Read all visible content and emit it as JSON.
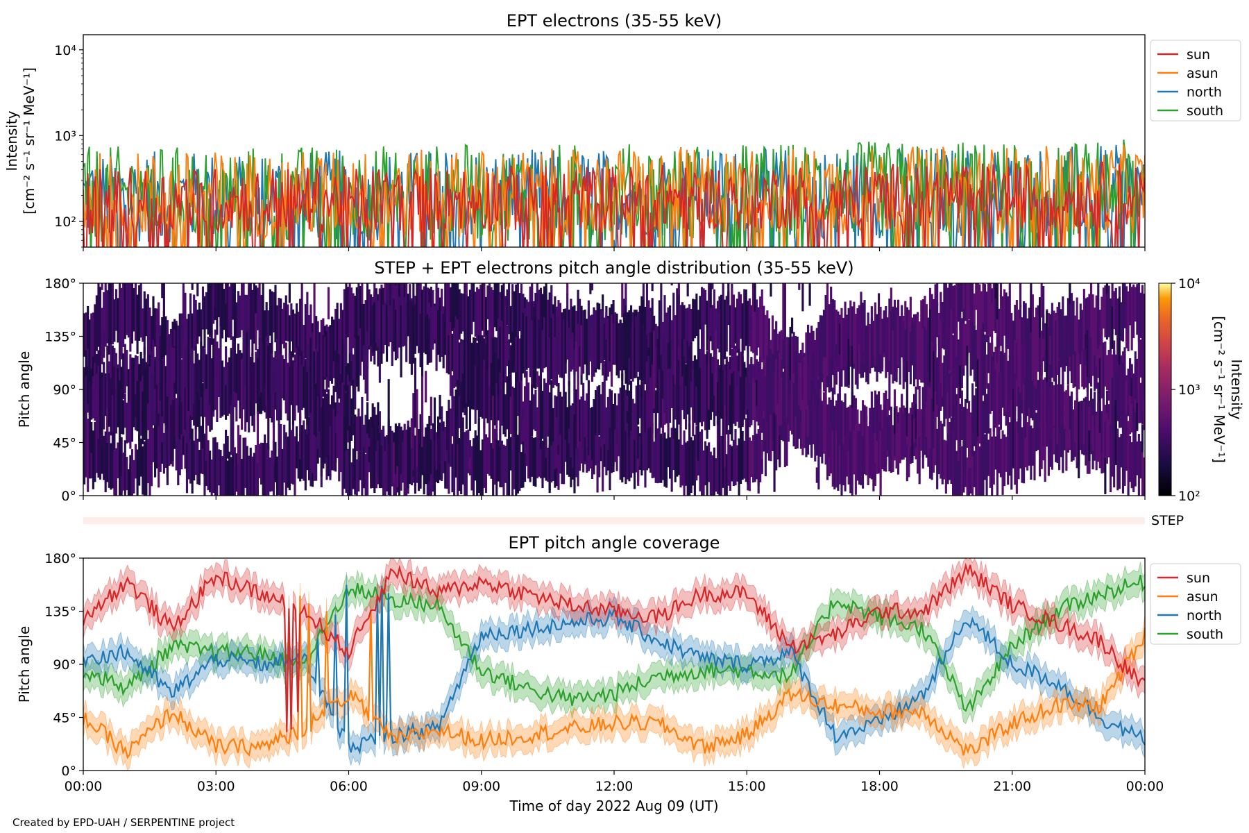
{
  "chart_data": [
    {
      "type": "line",
      "title": "EPT electrons (35-55 keV)",
      "ylabel_line1": "Intensity",
      "ylabel_line2": "[cm⁻² s⁻¹ sr⁻¹ MeV⁻¹]",
      "yscale": "log",
      "ylim": [
        50,
        15000
      ],
      "yticks": [
        {
          "value": 100,
          "label": "10²"
        },
        {
          "value": 1000,
          "label": "10³"
        },
        {
          "value": 10000,
          "label": "10⁴"
        }
      ],
      "x_hours": [
        0,
        24
      ],
      "legend_position": "outside-right",
      "series": [
        {
          "name": "sun",
          "color": "#d62728",
          "typical_min": 70,
          "typical_max": 420
        },
        {
          "name": "asun",
          "color": "#ff7f0e",
          "typical_min": 60,
          "typical_max": 650
        },
        {
          "name": "north",
          "color": "#1f77b4",
          "typical_min": 55,
          "typical_max": 650
        },
        {
          "name": "south",
          "color": "#2ca02c",
          "typical_min": 55,
          "typical_max": 750
        }
      ]
    },
    {
      "type": "heatmap",
      "title": "STEP + EPT electrons pitch angle distribution (35-55 keV)",
      "ylabel": "Pitch angle",
      "ylim": [
        0,
        180
      ],
      "yticks": [
        "0°",
        "45°",
        "90°",
        "135°",
        "180°"
      ],
      "colorbar": {
        "scale": "log",
        "range": [
          100,
          10000
        ],
        "ticks": [
          {
            "value": 100,
            "label": "10²"
          },
          {
            "value": 1000,
            "label": "10³"
          },
          {
            "value": 10000,
            "label": "10⁴"
          }
        ],
        "label_line1": "Intensity",
        "label_line2": "[cm⁻² s⁻¹ sr⁻¹ MeV⁻¹]",
        "colormap": "inferno"
      },
      "step_label": "STEP"
    },
    {
      "type": "line",
      "title": "EPT pitch angle coverage",
      "ylabel": "Pitch angle",
      "ylim": [
        0,
        180
      ],
      "yticks": [
        "0°",
        "45°",
        "90°",
        "135°",
        "180°"
      ],
      "xlabel": "Time of day 2022 Aug 09 (UT)",
      "xticks": [
        "00:00",
        "03:00",
        "06:00",
        "09:00",
        "12:00",
        "15:00",
        "18:00",
        "21:00",
        "00:00"
      ],
      "x_hours": [
        0,
        24
      ],
      "legend_position": "outside-right",
      "series": [
        {
          "name": "sun",
          "color": "#d62728",
          "x": [
            0,
            1,
            2,
            3,
            4,
            5,
            6,
            7,
            8,
            9,
            10,
            11,
            12,
            13,
            14,
            15,
            16,
            17,
            18,
            19,
            20,
            21,
            22,
            23,
            24
          ],
          "y": [
            130,
            160,
            120,
            165,
            150,
            135,
            100,
            170,
            150,
            160,
            150,
            140,
            135,
            130,
            150,
            150,
            105,
            115,
            135,
            135,
            170,
            140,
            125,
            110,
            70
          ]
        },
        {
          "name": "asun",
          "color": "#ff7f0e",
          "x": [
            0,
            1,
            2,
            3,
            4,
            5,
            6,
            7,
            8,
            9,
            10,
            11,
            12,
            13,
            14,
            15,
            16,
            17,
            18,
            19,
            20,
            21,
            22,
            23,
            24
          ],
          "y": [
            45,
            15,
            50,
            20,
            20,
            35,
            65,
            25,
            35,
            25,
            30,
            35,
            40,
            40,
            20,
            30,
            65,
            55,
            50,
            50,
            15,
            40,
            55,
            55,
            115
          ]
        },
        {
          "name": "north",
          "color": "#1f77b4",
          "x": [
            0,
            1,
            2,
            3,
            4,
            5,
            6,
            7,
            8,
            9,
            10,
            11,
            12,
            13,
            14,
            15,
            16,
            17,
            18,
            19,
            20,
            21,
            22,
            23,
            24
          ],
          "y": [
            95,
            100,
            65,
            95,
            90,
            95,
            20,
            30,
            35,
            115,
            120,
            125,
            130,
            110,
            95,
            90,
            100,
            30,
            40,
            65,
            130,
            90,
            75,
            45,
            25
          ]
        },
        {
          "name": "south",
          "color": "#2ca02c",
          "x": [
            0,
            1,
            2,
            3,
            4,
            5,
            6,
            7,
            8,
            9,
            10,
            11,
            12,
            13,
            14,
            15,
            16,
            17,
            18,
            19,
            20,
            21,
            22,
            23,
            24
          ],
          "y": [
            85,
            70,
            105,
            100,
            100,
            90,
            155,
            145,
            140,
            85,
            70,
            60,
            65,
            80,
            85,
            85,
            80,
            145,
            130,
            120,
            50,
            105,
            135,
            150,
            160
          ]
        }
      ]
    }
  ],
  "credit": "Created by EPD-UAH / SERPENTINE project"
}
